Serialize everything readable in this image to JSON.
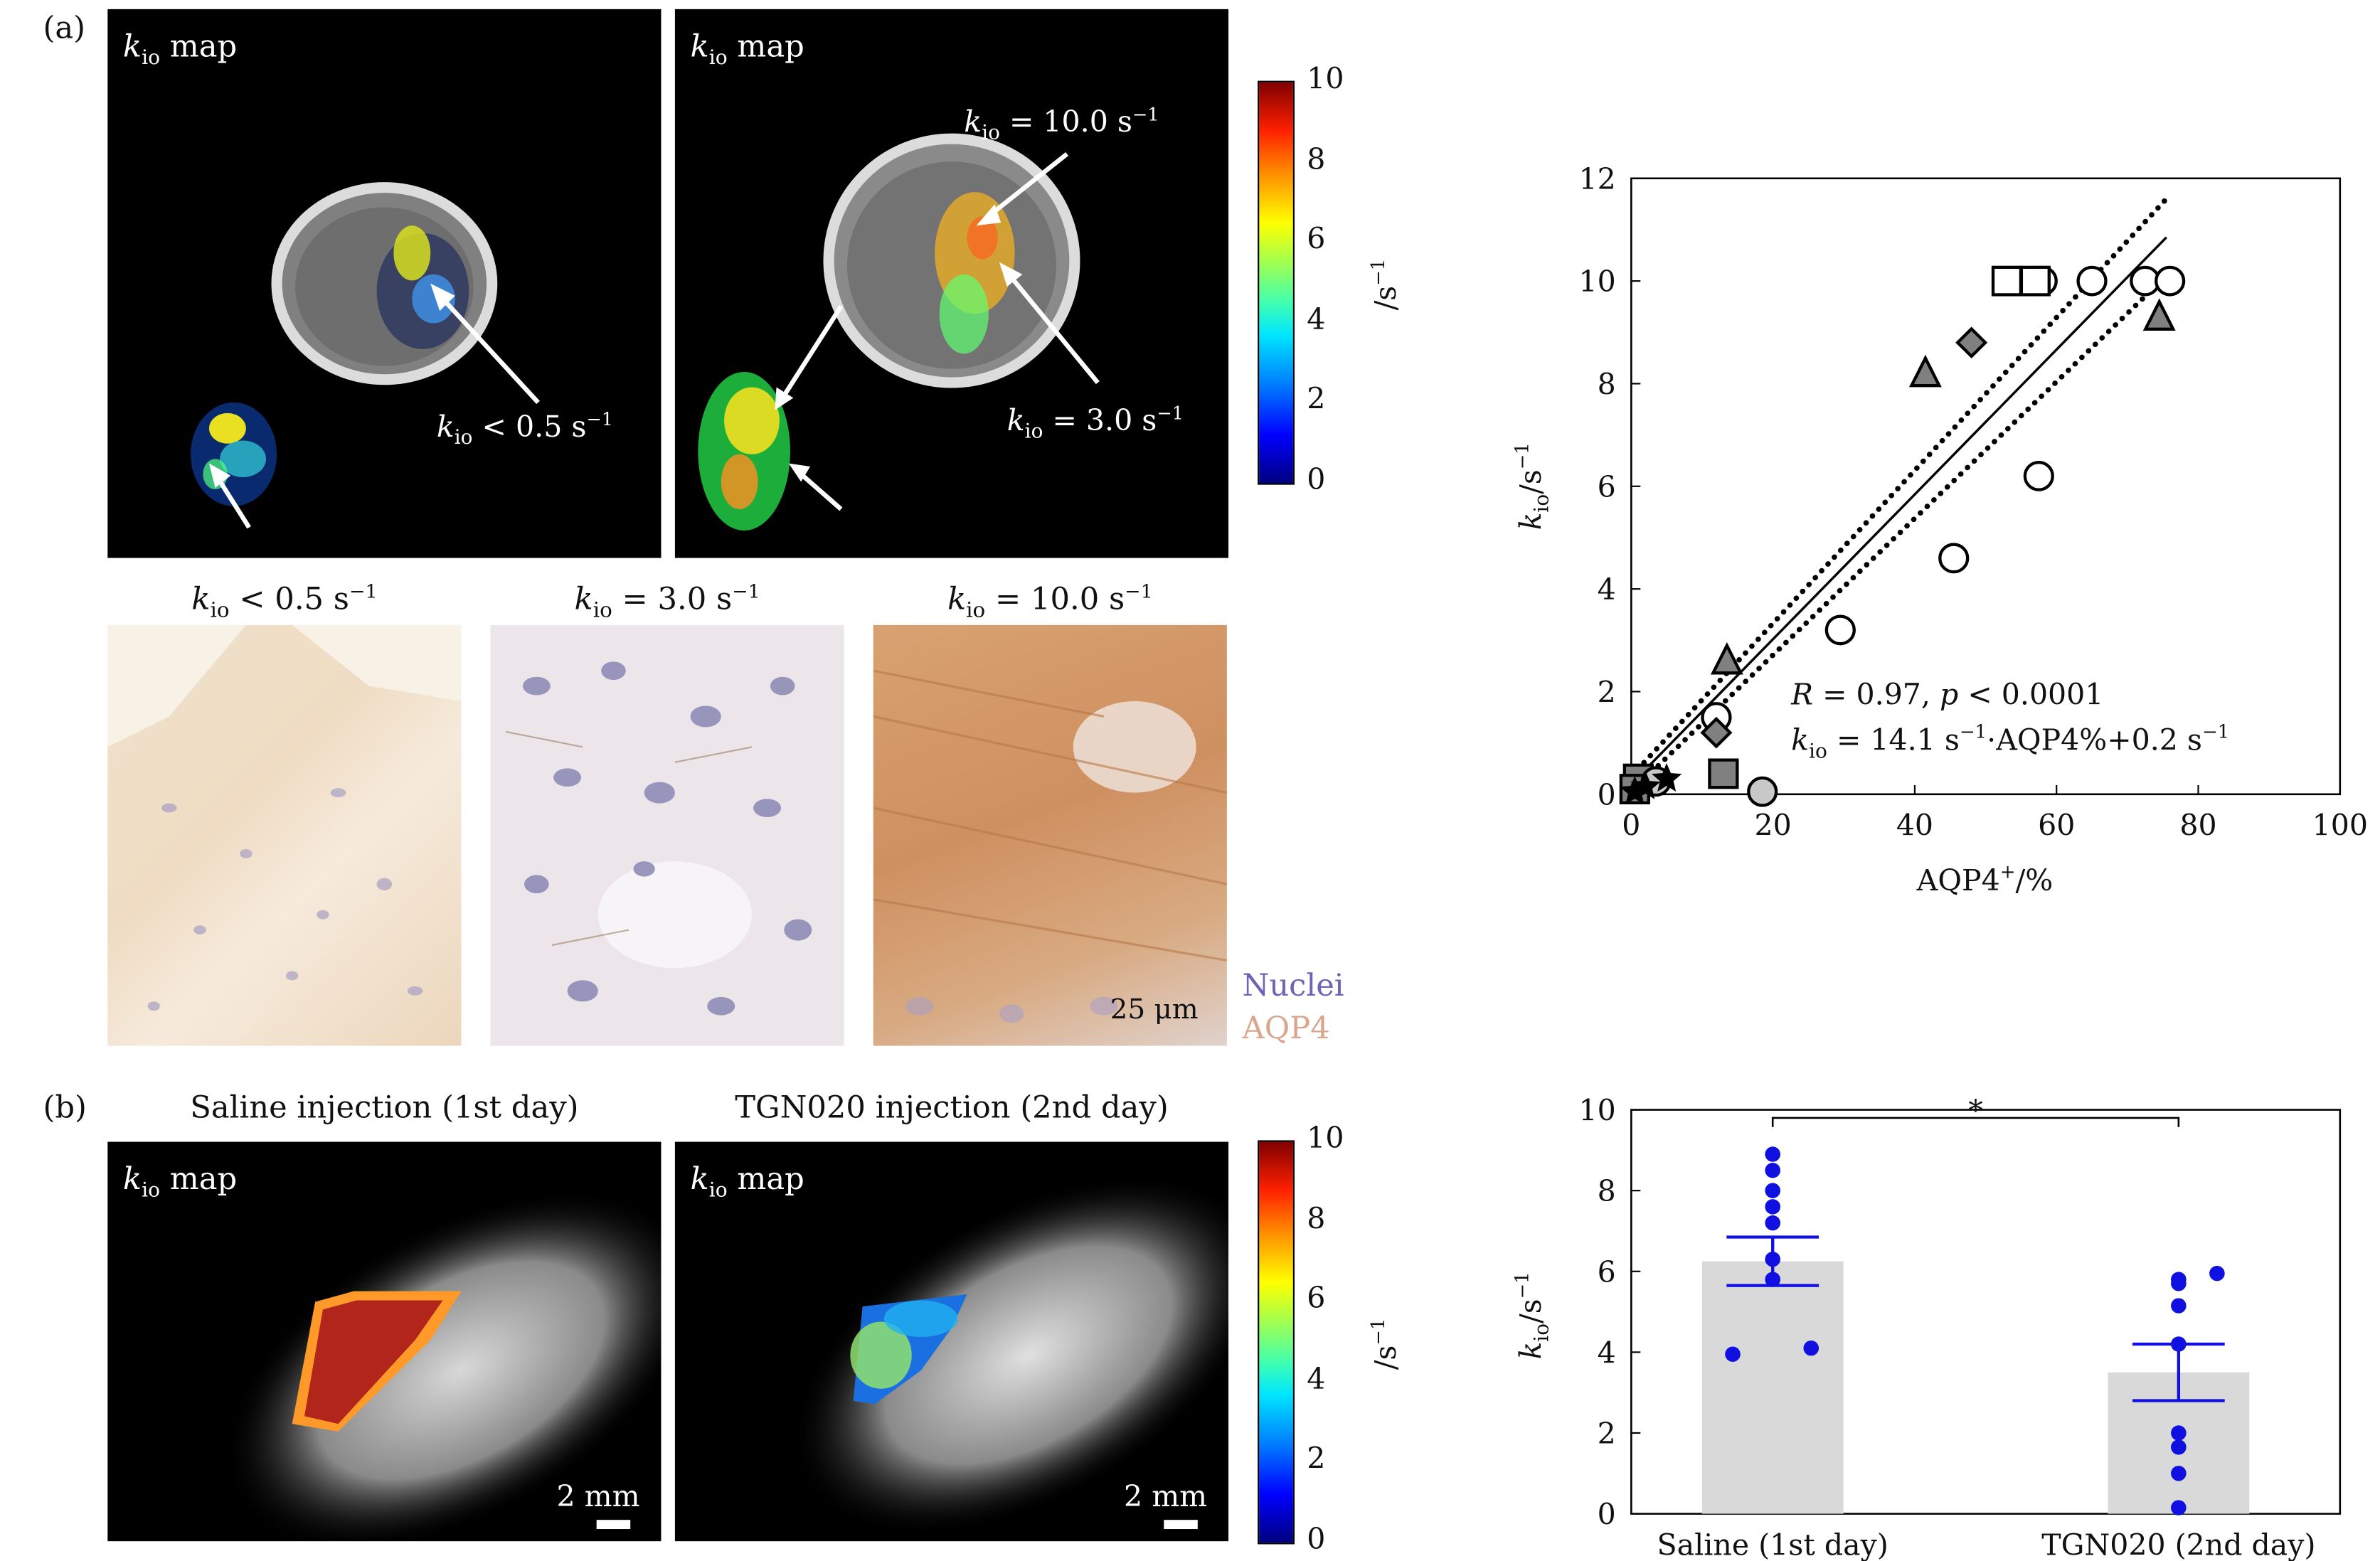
{
  "panel_a": {
    "label": "(a)",
    "map_title": "k_io map",
    "left_map": {
      "annotation": "k_io < 0.5 s^-1"
    },
    "right_map": {
      "annotation_top": "k_io = 10.0 s^-1",
      "annotation_bottom": "k_io = 3.0 s^-1"
    },
    "colorbar": {
      "ticks": [
        "10",
        "8",
        "6",
        "4",
        "2",
        "0"
      ],
      "unit": "/s^-1"
    },
    "histology": {
      "captions": [
        "k_io < 0.5 s^-1",
        "k_io = 3.0 s^-1",
        "k_io = 10.0 s^-1"
      ],
      "scale_label": "25 μm",
      "legend": [
        {
          "label": "Nuclei",
          "color": "#6b64b8"
        },
        {
          "label": "AQP4",
          "color": "#d9a58c"
        }
      ]
    }
  },
  "panel_b": {
    "label": "(b)",
    "captions": [
      "Saline injection (1st day)",
      "TGN020 injection (2nd day)"
    ],
    "map_title": "k_io map",
    "scale_label": "2 mm",
    "colorbar": {
      "ticks": [
        "10",
        "8",
        "6",
        "4",
        "2",
        "0"
      ],
      "unit": "/s^-1"
    }
  },
  "chart_data": [
    {
      "type": "scatter",
      "xlabel": "AQP4+/%",
      "ylabel": "k_io/s^-1",
      "xlim": [
        0,
        100
      ],
      "ylim": [
        0,
        12
      ],
      "xticks": [
        0,
        20,
        40,
        60,
        80,
        100
      ],
      "yticks": [
        0,
        2,
        4,
        6,
        8,
        10,
        12
      ],
      "annotations": [
        "R = 0.97, p < 0.0001",
        "k_io = 14.1 s^-1·AQP4% + 0.2 s^-1"
      ],
      "series": [
        {
          "marker": "circle",
          "color": "#ffffff",
          "points": [
            [
              65,
              10
            ],
            [
              72.5,
              10
            ],
            [
              76,
              10
            ],
            [
              58,
              10
            ],
            [
              57.5,
              6.2
            ],
            [
              45.5,
              4.6
            ],
            [
              29.5,
              3.2
            ],
            [
              12,
              1.5
            ]
          ]
        },
        {
          "marker": "square",
          "color": "#ffffff",
          "points": [
            [
              53,
              10
            ],
            [
              57,
              10
            ]
          ]
        },
        {
          "marker": "triangle",
          "color": "#808080",
          "points": [
            [
              41.5,
              8.2
            ],
            [
              74.5,
              9.3
            ],
            [
              13.5,
              2.6
            ]
          ]
        },
        {
          "marker": "diamond",
          "color": "#808080",
          "points": [
            [
              48,
              8.8
            ],
            [
              12,
              1.2
            ]
          ]
        },
        {
          "marker": "square",
          "color": "#808080",
          "points": [
            [
              13,
              0.4
            ],
            [
              1,
              0.3
            ],
            [
              0.5,
              0.1
            ]
          ]
        },
        {
          "marker": "circle",
          "color": "#c8c8c8",
          "points": [
            [
              18.5,
              0.05
            ],
            [
              3.5,
              0.25
            ]
          ]
        },
        {
          "marker": "star",
          "color": "#000000",
          "points": [
            [
              5,
              0.3
            ],
            [
              2,
              0.15
            ],
            [
              0.5,
              0.05
            ]
          ]
        }
      ],
      "fit": {
        "line": [
          [
            0,
            0.2
          ],
          [
            75.5,
            10.85
          ]
        ],
        "ci_upper": [
          [
            0,
            0.35
          ],
          [
            75.5,
            11.6
          ]
        ],
        "ci_lower": [
          [
            0,
            0.05
          ],
          [
            75.5,
            10.1
          ]
        ]
      }
    },
    {
      "type": "bar",
      "categories": [
        "Saline (1st day)",
        "TGN020 (2nd day)"
      ],
      "values": [
        6.25,
        3.5
      ],
      "errors": [
        [
          5.65,
          6.85
        ],
        [
          2.8,
          4.2
        ]
      ],
      "points": [
        [
          8.9,
          8.5,
          8.0,
          7.6,
          7.2,
          6.3,
          5.8,
          4.1,
          3.95
        ],
        [
          5.95,
          5.8,
          5.7,
          5.15,
          4.2,
          2.0,
          1.65,
          1.0,
          0.15
        ]
      ],
      "significance": "*",
      "ylabel": "k_io/s^-1",
      "ylim": [
        0,
        10
      ],
      "yticks": [
        0,
        2,
        4,
        6,
        8,
        10
      ]
    }
  ]
}
